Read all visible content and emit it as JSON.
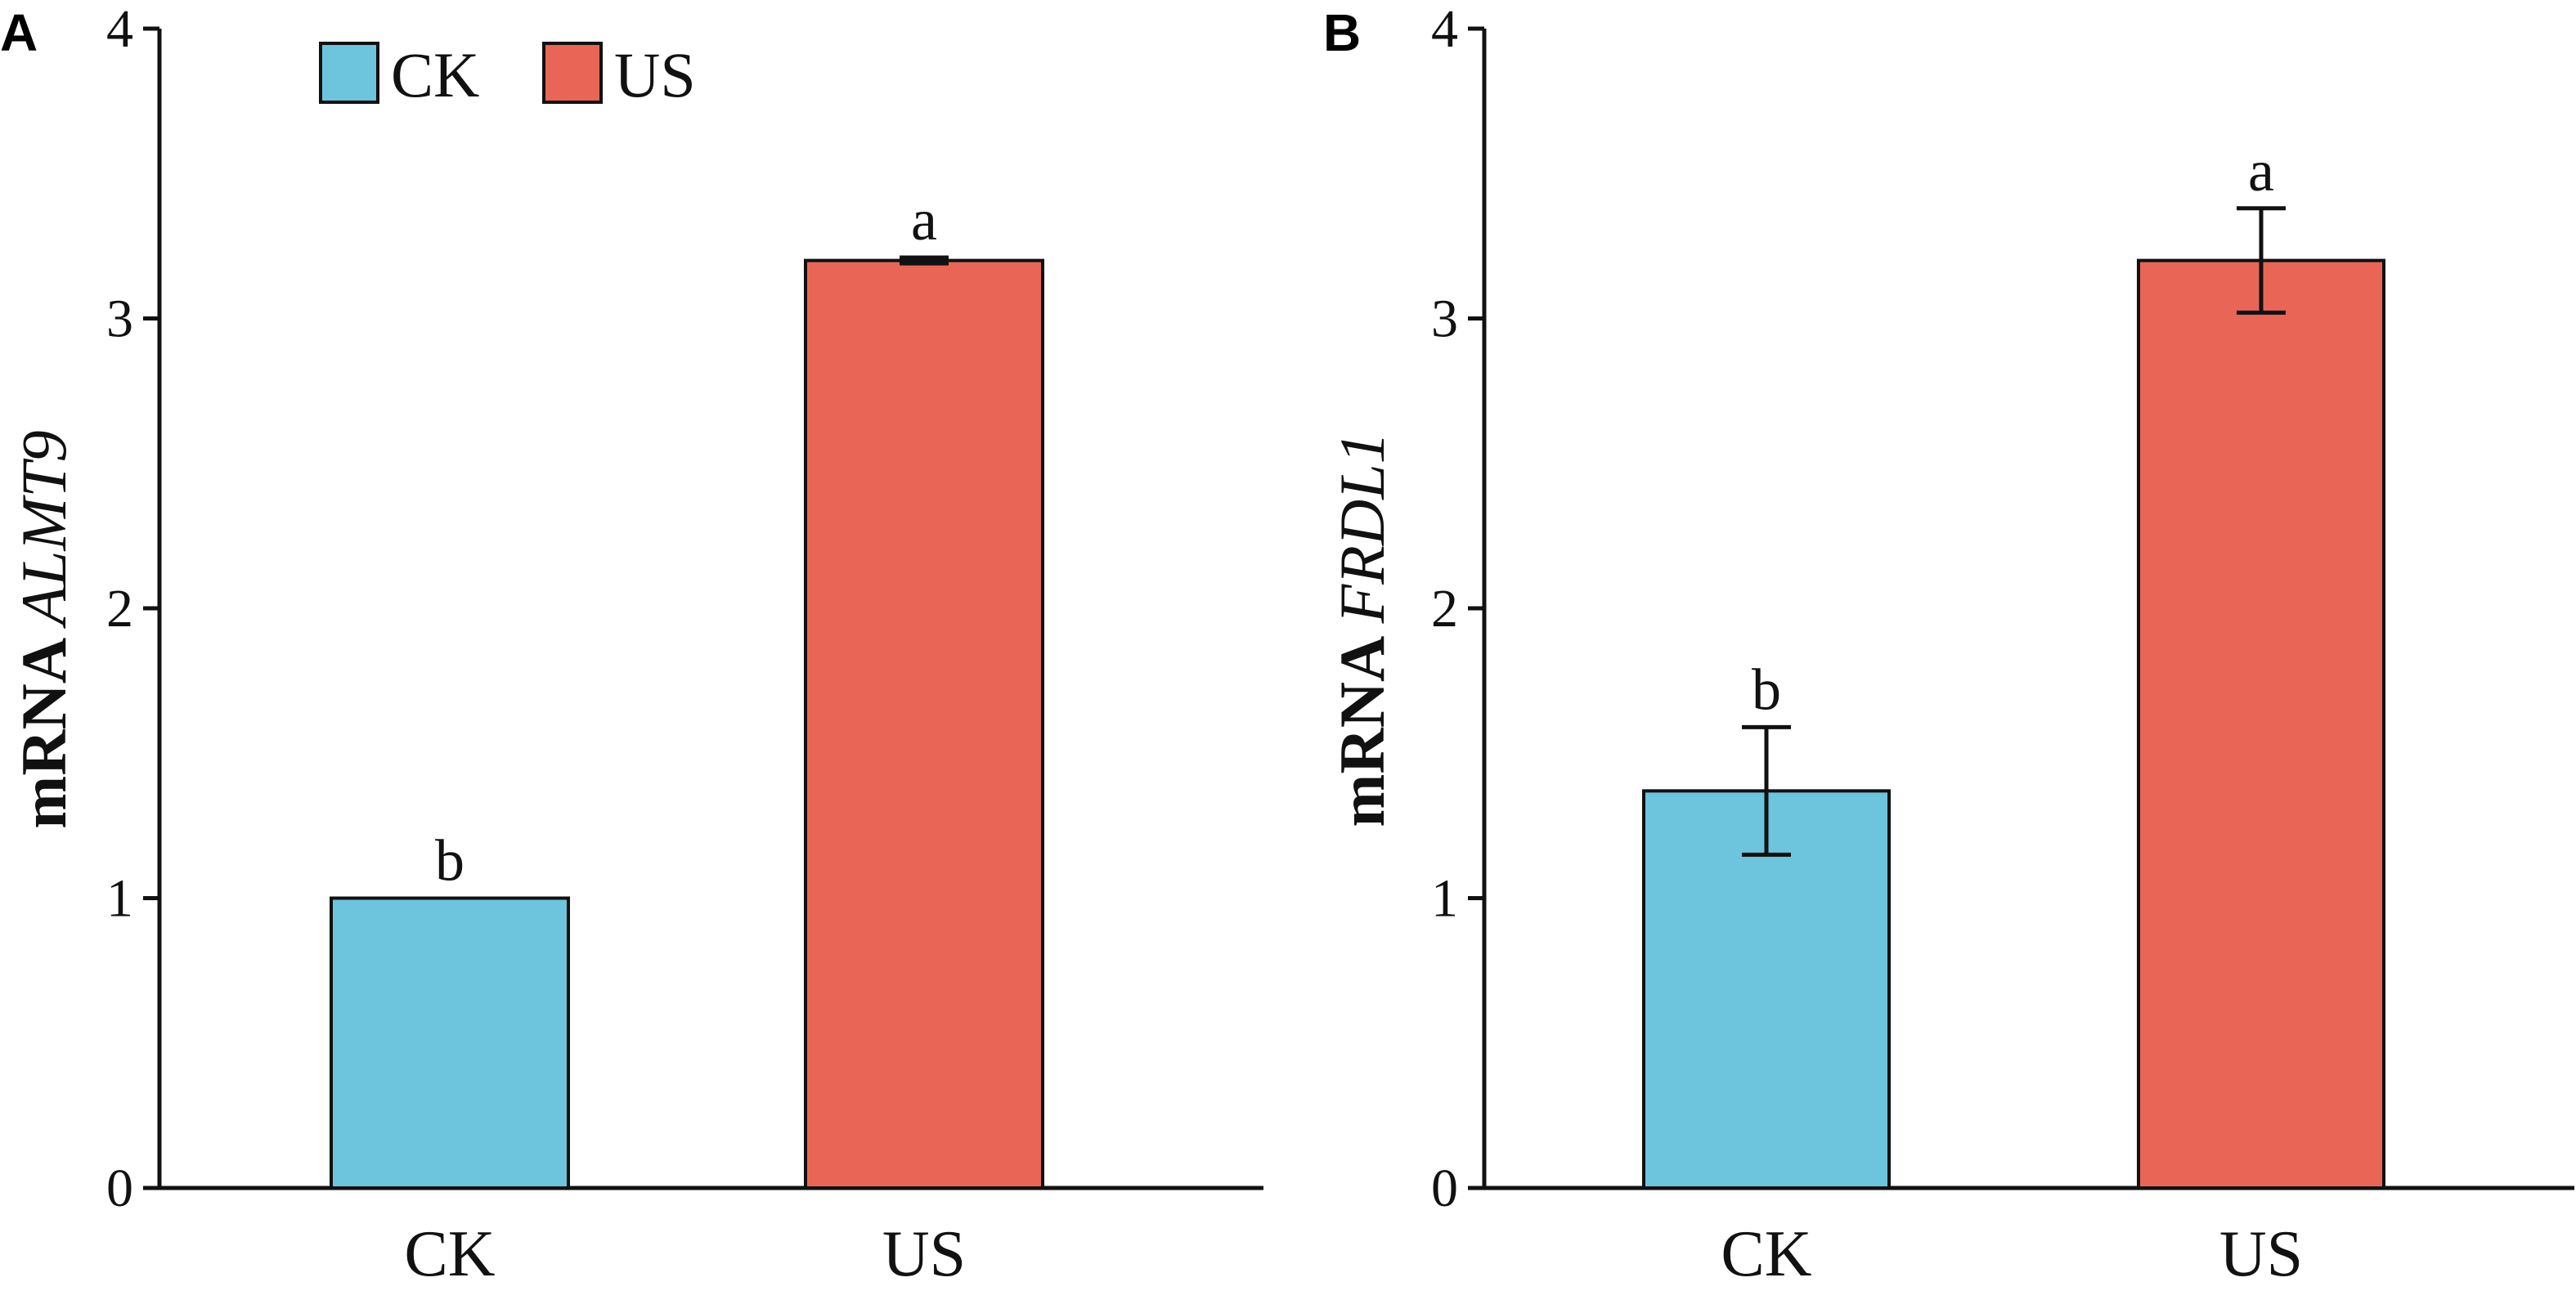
{
  "colors": {
    "CK": "#6cc5dc",
    "US": "#e96656"
  },
  "legend": [
    {
      "name": "CK",
      "color": "#6cc5dc"
    },
    {
      "name": "US",
      "color": "#e96656"
    }
  ],
  "chart_data": [
    {
      "type": "bar",
      "panel": "A",
      "ylabel_prefix": "mRNA ",
      "ylabel_gene": "ALMT9",
      "categories": [
        "CK",
        "US"
      ],
      "values": [
        1.0,
        3.2
      ],
      "errors": [
        0.0,
        0.01
      ],
      "significance": [
        "b",
        "a"
      ],
      "ylim": [
        0,
        4
      ],
      "yticks": [
        "0",
        "1",
        "2",
        "3",
        "4"
      ],
      "xlabel": "",
      "legend_position": "top-left"
    },
    {
      "type": "bar",
      "panel": "B",
      "ylabel_prefix": "mRNA ",
      "ylabel_gene": "FRDL1",
      "categories": [
        "CK",
        "US"
      ],
      "values": [
        1.37,
        3.2
      ],
      "errors": [
        0.22,
        0.18
      ],
      "significance": [
        "b",
        "a"
      ],
      "ylim": [
        0,
        4
      ],
      "yticks": [
        "0",
        "1",
        "2",
        "3",
        "4"
      ],
      "xlabel": ""
    }
  ]
}
